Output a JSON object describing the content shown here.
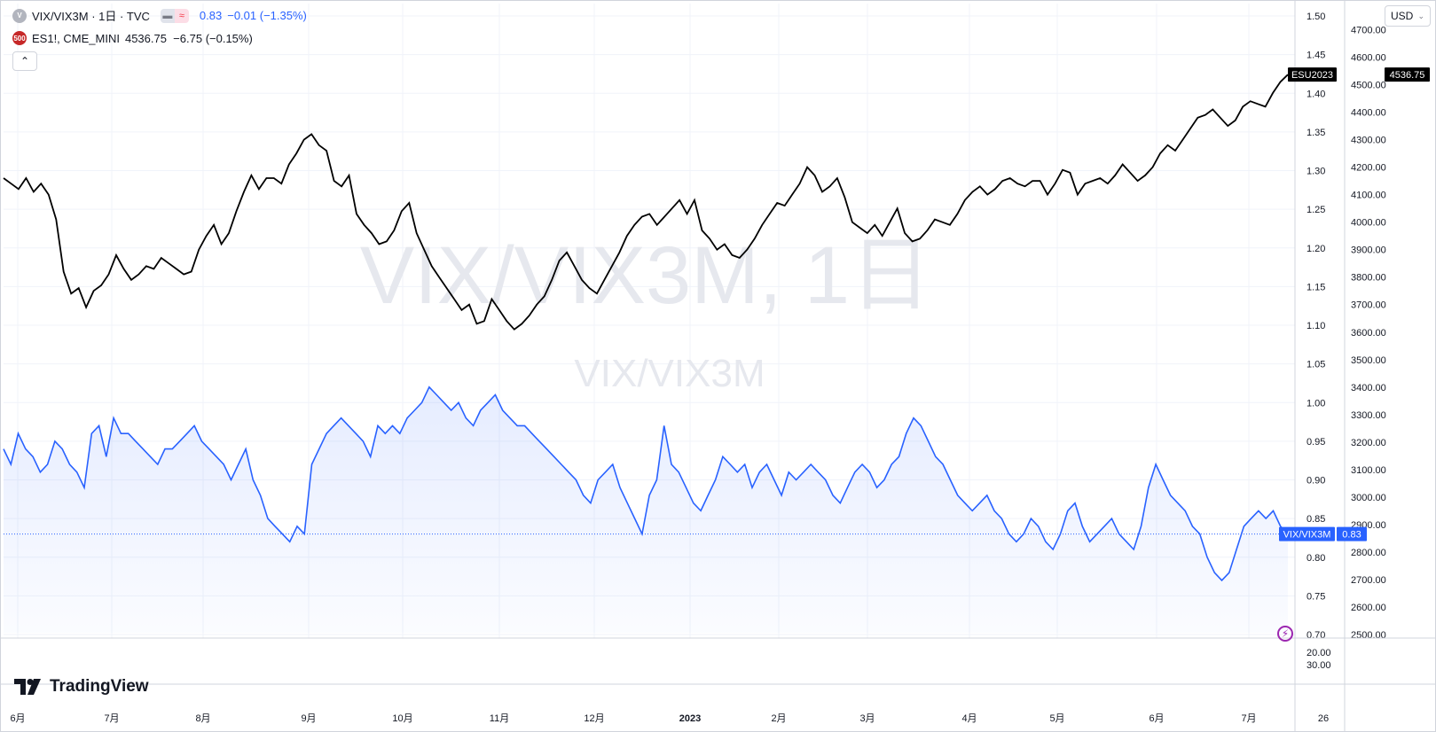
{
  "legend": {
    "main_symbol": "VIX/VIX3M · 1日 · TVC",
    "main_badge": "V",
    "main_price": "0.83",
    "main_change": "−0.01 (−1.35%)",
    "overlay_badge": "500",
    "overlay_symbol": "ES1!, CME_MINI",
    "overlay_values": "4536.75  −6.75 (−0.15%)",
    "collapse_icon": "chevron-up-icon"
  },
  "currency_button": {
    "label": "USD",
    "icon": "chevron-down-icon"
  },
  "watermark": {
    "title": "VIX/VIX3M, 1日",
    "subtitle": "VIX/VIX3M"
  },
  "branding": {
    "logo_text": "TradingView"
  },
  "colors": {
    "vix_line": "#2962ff",
    "es_line": "#000000",
    "fill": "#2962ff",
    "grid": "#f0f3fa"
  },
  "chart_data": {
    "type": "line",
    "x_axis": {
      "labels": [
        "6月",
        "7月",
        "8月",
        "9月",
        "10月",
        "11月",
        "12月",
        "2023",
        "2月",
        "3月",
        "4月",
        "5月",
        "6月",
        "7月",
        "26"
      ]
    },
    "y_axis_right_inner": {
      "name": "VIX/VIX3M",
      "ticks": [
        "1.50",
        "1.45",
        "1.40",
        "1.35",
        "1.30",
        "1.25",
        "1.20",
        "1.15",
        "1.10",
        "1.05",
        "1.00",
        "0.95",
        "0.90",
        "0.85",
        "0.80",
        "0.75",
        "0.70"
      ],
      "range": [
        0.7,
        1.5
      ]
    },
    "y_axis_right_outer": {
      "name": "ES1!",
      "ticks": [
        "4700.00",
        "4600.00",
        "4500.00",
        "4400.00",
        "4300.00",
        "4200.00",
        "4100.00",
        "4000.00",
        "3900.00",
        "3800.00",
        "3700.00",
        "3600.00",
        "3500.00",
        "3400.00",
        "3300.00",
        "3200.00",
        "3100.00",
        "3000.00",
        "2900.00",
        "2800.00",
        "2700.00",
        "2600.00",
        "2500.00"
      ],
      "range": [
        2500,
        4750
      ]
    },
    "lower_pane_ticks": [
      "20.00",
      "30.00"
    ],
    "series": [
      {
        "name": "VIX/VIX3M",
        "label": "VIX/VIX3M",
        "last": "0.83",
        "values": [
          0.94,
          0.92,
          0.96,
          0.94,
          0.93,
          0.91,
          0.92,
          0.95,
          0.94,
          0.92,
          0.91,
          0.89,
          0.96,
          0.97,
          0.93,
          0.98,
          0.96,
          0.96,
          0.95,
          0.94,
          0.93,
          0.92,
          0.94,
          0.94,
          0.95,
          0.96,
          0.97,
          0.95,
          0.94,
          0.93,
          0.92,
          0.9,
          0.92,
          0.94,
          0.9,
          0.88,
          0.85,
          0.84,
          0.83,
          0.82,
          0.84,
          0.83,
          0.92,
          0.94,
          0.96,
          0.97,
          0.98,
          0.97,
          0.96,
          0.95,
          0.93,
          0.97,
          0.96,
          0.97,
          0.96,
          0.98,
          0.99,
          1.0,
          1.02,
          1.01,
          1.0,
          0.99,
          1.0,
          0.98,
          0.97,
          0.99,
          1.0,
          1.01,
          0.99,
          0.98,
          0.97,
          0.97,
          0.96,
          0.95,
          0.94,
          0.93,
          0.92,
          0.91,
          0.9,
          0.88,
          0.87,
          0.9,
          0.91,
          0.92,
          0.89,
          0.87,
          0.85,
          0.83,
          0.88,
          0.9,
          0.97,
          0.92,
          0.91,
          0.89,
          0.87,
          0.86,
          0.88,
          0.9,
          0.93,
          0.92,
          0.91,
          0.92,
          0.89,
          0.91,
          0.92,
          0.9,
          0.88,
          0.91,
          0.9,
          0.91,
          0.92,
          0.91,
          0.9,
          0.88,
          0.87,
          0.89,
          0.91,
          0.92,
          0.91,
          0.89,
          0.9,
          0.92,
          0.93,
          0.96,
          0.98,
          0.97,
          0.95,
          0.93,
          0.92,
          0.9,
          0.88,
          0.87,
          0.86,
          0.87,
          0.88,
          0.86,
          0.85,
          0.83,
          0.82,
          0.83,
          0.85,
          0.84,
          0.82,
          0.81,
          0.83,
          0.86,
          0.87,
          0.84,
          0.82,
          0.83,
          0.84,
          0.85,
          0.83,
          0.82,
          0.81,
          0.84,
          0.89,
          0.92,
          0.9,
          0.88,
          0.87,
          0.86,
          0.84,
          0.83,
          0.8,
          0.78,
          0.77,
          0.78,
          0.81,
          0.84,
          0.85,
          0.86,
          0.85,
          0.86,
          0.84,
          0.83
        ]
      },
      {
        "name": "ES1!",
        "label": "ESU2023",
        "last": "4536.75",
        "values": [
          4160,
          4140,
          4120,
          4160,
          4110,
          4140,
          4100,
          4010,
          3820,
          3740,
          3760,
          3690,
          3750,
          3770,
          3810,
          3880,
          3830,
          3790,
          3810,
          3840,
          3830,
          3870,
          3850,
          3830,
          3810,
          3820,
          3900,
          3950,
          3990,
          3920,
          3960,
          4040,
          4110,
          4170,
          4120,
          4160,
          4160,
          4140,
          4210,
          4250,
          4300,
          4320,
          4280,
          4260,
          4150,
          4130,
          4170,
          4030,
          3990,
          3960,
          3920,
          3930,
          3970,
          4040,
          4070,
          3960,
          3900,
          3840,
          3800,
          3760,
          3720,
          3680,
          3700,
          3630,
          3640,
          3720,
          3680,
          3640,
          3610,
          3630,
          3660,
          3700,
          3730,
          3790,
          3860,
          3890,
          3840,
          3790,
          3760,
          3740,
          3790,
          3840,
          3890,
          3950,
          3990,
          4020,
          4030,
          3990,
          4020,
          4050,
          4080,
          4030,
          4080,
          3970,
          3940,
          3900,
          3920,
          3880,
          3870,
          3900,
          3940,
          3990,
          4030,
          4070,
          4060,
          4100,
          4140,
          4200,
          4170,
          4110,
          4130,
          4160,
          4090,
          4000,
          3980,
          3960,
          3990,
          3950,
          4000,
          4050,
          3960,
          3930,
          3940,
          3970,
          4010,
          4000,
          3990,
          4030,
          4080,
          4110,
          4130,
          4100,
          4120,
          4150,
          4160,
          4140,
          4130,
          4150,
          4150,
          4100,
          4140,
          4190,
          4180,
          4100,
          4140,
          4150,
          4160,
          4140,
          4170,
          4210,
          4180,
          4150,
          4170,
          4200,
          4250,
          4280,
          4260,
          4300,
          4340,
          4380,
          4390,
          4410,
          4380,
          4350,
          4370,
          4420,
          4440,
          4430,
          4420,
          4470,
          4510,
          4536.75
        ]
      }
    ]
  }
}
